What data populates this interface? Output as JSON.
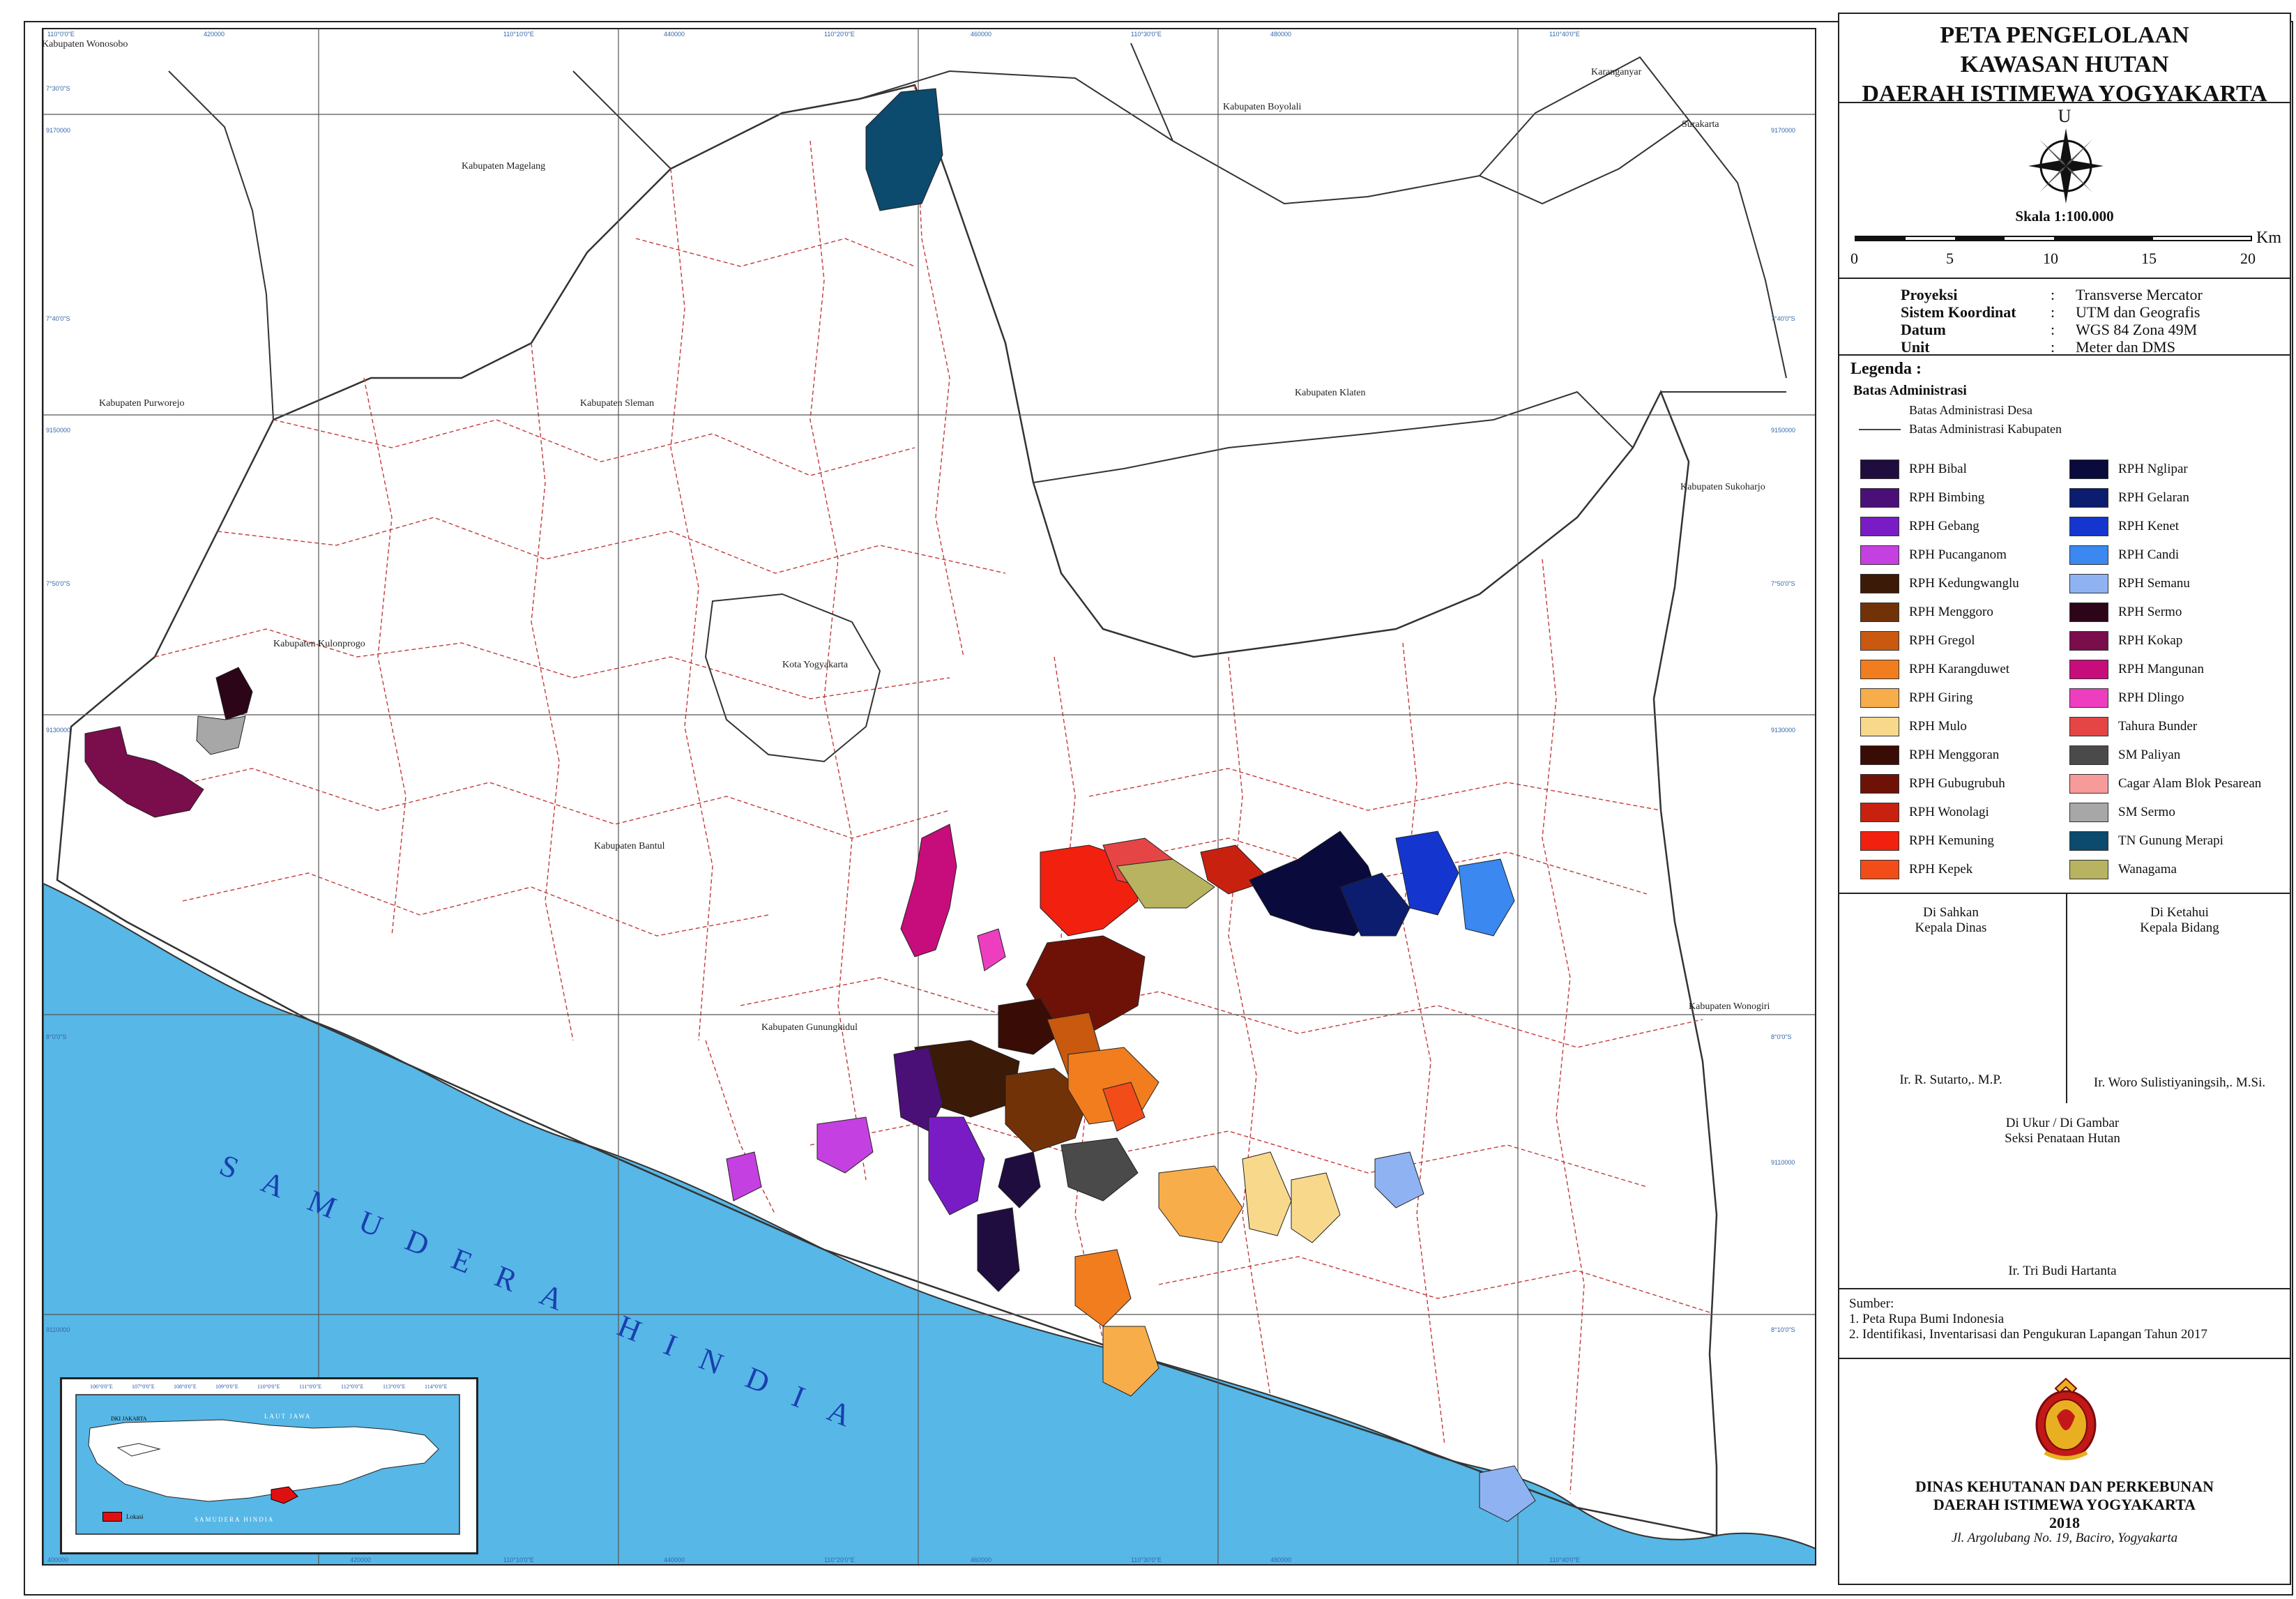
{
  "colors": {
    "sea": "#57b7e6",
    "grid": "#555555",
    "boundary_kabupaten": "#333333",
    "boundary_desa": "#c23a3a"
  },
  "map": {
    "regencies": [
      "Kabupaten Wonosobo",
      "Kabupaten Magelang",
      "Kabupaten Boyolali",
      "Kabupaten Purworejo",
      "Kabupaten Sleman",
      "Kabupaten Klaten",
      "Kabupaten Sukoharjo",
      "Kabupaten Kulonprogo",
      "Kota Yogyakarta",
      "Kabupaten Bantul",
      "Kabupaten Gunungkidul",
      "Kabupaten Wonogiri",
      "Karanganyar",
      "Surakarta"
    ],
    "ocean_label": "SAMUDERA HINDIA",
    "grid_top_labels": [
      "110°0'0\"E",
      "420000",
      "110°10'0\"E",
      "440000",
      "110°20'0\"E",
      "460000",
      "110°30'0\"E",
      "480000",
      "110°40'0\"E"
    ],
    "grid_bottom_labels": [
      "400000",
      "420000",
      "110°10'0\"E",
      "440000",
      "110°20'0\"E",
      "460000",
      "110°30'0\"E",
      "480000",
      "110°40'0\"E"
    ],
    "grid_left_labels": [
      "7°30'0\"S",
      "9170000",
      "7°40'0\"S",
      "9150000",
      "7°50'0\"S",
      "9130000",
      "8°0'0\"S",
      "9110000"
    ],
    "grid_right_labels": [
      "9170000",
      "7°40'0\"S",
      "9150000",
      "7°50'0\"S",
      "9130000",
      "8°0'0\"S",
      "9110000",
      "8°10'0\"S"
    ],
    "inset": {
      "labels": [
        "LAUT JAWA",
        "SAMUDERA HINDIA",
        "DKI JAKARTA"
      ],
      "legend": "Lokasi",
      "ticks": [
        "106°0'0\"E",
        "107°0'0\"E",
        "108°0'0\"E",
        "109°0'0\"E",
        "110°0'0\"E",
        "111°0'0\"E",
        "112°0'0\"E",
        "113°0'0\"E",
        "114°0'0\"E"
      ]
    }
  },
  "title": [
    "PETA PENGELOLAAN",
    "KAWASAN HUTAN",
    "DAERAH ISTIMEWA YOGYAKARTA"
  ],
  "north": "U",
  "scale": {
    "text": "Skala 1:100.000",
    "unit": "Km",
    "labels": [
      "0",
      "5",
      "10",
      "15",
      "20"
    ]
  },
  "projection": [
    {
      "key": "Proyeksi",
      "value": "Transverse Mercator"
    },
    {
      "key": "Sistem Koordinat",
      "value": "UTM dan Geografis"
    },
    {
      "key": "Datum",
      "value": "WGS 84 Zona 49M"
    },
    {
      "key": "Unit",
      "value": "Meter dan DMS"
    }
  ],
  "legend": {
    "heading": "Legenda :",
    "admin_heading": "Batas Administrasi",
    "desa": "Batas Administrasi Desa",
    "kabupaten": "Batas Administrasi Kabupaten",
    "left": [
      {
        "label": "RPH Bibal",
        "color": "#1f0d3f"
      },
      {
        "label": "RPH Bimbing",
        "color": "#4b0f78"
      },
      {
        "label": "RPH Gebang",
        "color": "#7a1cc6"
      },
      {
        "label": "RPH Pucanganom",
        "color": "#c540e0"
      },
      {
        "label": "RPH Kedungwanglu",
        "color": "#3b1a07"
      },
      {
        "label": "RPH Menggoro",
        "color": "#723208"
      },
      {
        "label": "RPH Gregol",
        "color": "#c8590f"
      },
      {
        "label": "RPH Karangduwet",
        "color": "#f17d1e"
      },
      {
        "label": "RPH Giring",
        "color": "#f7ad4a"
      },
      {
        "label": "RPH Mulo",
        "color": "#f8d98c"
      },
      {
        "label": "RPH Menggoran",
        "color": "#3a0c06"
      },
      {
        "label": "RPH Gubugrubuh",
        "color": "#6e1208"
      },
      {
        "label": "RPH Wonolagi",
        "color": "#c9210f"
      },
      {
        "label": "RPH Kemuning",
        "color": "#f2200f"
      },
      {
        "label": "RPH Kepek",
        "color": "#f24c19"
      }
    ],
    "right": [
      {
        "label": "RPH Nglipar",
        "color": "#0a0a3d"
      },
      {
        "label": "RPH Gelaran",
        "color": "#0c1c6e"
      },
      {
        "label": "RPH Kenet",
        "color": "#1436cf"
      },
      {
        "label": "RPH Candi",
        "color": "#3a88f0"
      },
      {
        "label": "RPH Semanu",
        "color": "#8fb3f2"
      },
      {
        "label": "RPH Sermo",
        "color": "#2c0518"
      },
      {
        "label": "RPH Kokap",
        "color": "#7a0d4c"
      },
      {
        "label": "RPH Mangunan",
        "color": "#c70d7b"
      },
      {
        "label": "RPH Dlingo",
        "color": "#ee3ec0"
      },
      {
        "label": "Tahura Bunder",
        "color": "#e54545"
      },
      {
        "label": "SM Paliyan",
        "color": "#4a4a4a"
      },
      {
        "label": "Cagar Alam Blok Pesarean",
        "color": "#f79a9a"
      },
      {
        "label": "SM Sermo",
        "color": "#a7a7a7"
      },
      {
        "label": "TN Gunung Merapi",
        "color": "#0c4a6e"
      },
      {
        "label": "Wanagama",
        "color": "#b8b360"
      }
    ]
  },
  "signatures": {
    "left_title": [
      "Di Sahkan",
      "Kepala Dinas"
    ],
    "left_name": "Ir. R. Sutarto,. M.P.",
    "right_title": [
      "Di Ketahui",
      "Kepala Bidang"
    ],
    "right_name": "Ir. Woro Sulistiyaningsih,. M.Si.",
    "bottom_title": [
      "Di Ukur / Di Gambar",
      "Seksi Penataan Hutan"
    ],
    "bottom_name": "Ir. Tri Budi Hartanta"
  },
  "source": {
    "heading": "Sumber:",
    "items": [
      "1. Peta Rupa Bumi Indonesia",
      "2. Identifikasi, Inventarisasi dan Pengukuran Lapangan Tahun 2017"
    ]
  },
  "agency": {
    "lines": [
      "DINAS KEHUTANAN DAN PERKEBUNAN",
      "DAERAH ISTIMEWA YOGYAKARTA",
      "2018"
    ],
    "address": "Jl. Argolubang No. 19, Baciro, Yogyakarta"
  }
}
